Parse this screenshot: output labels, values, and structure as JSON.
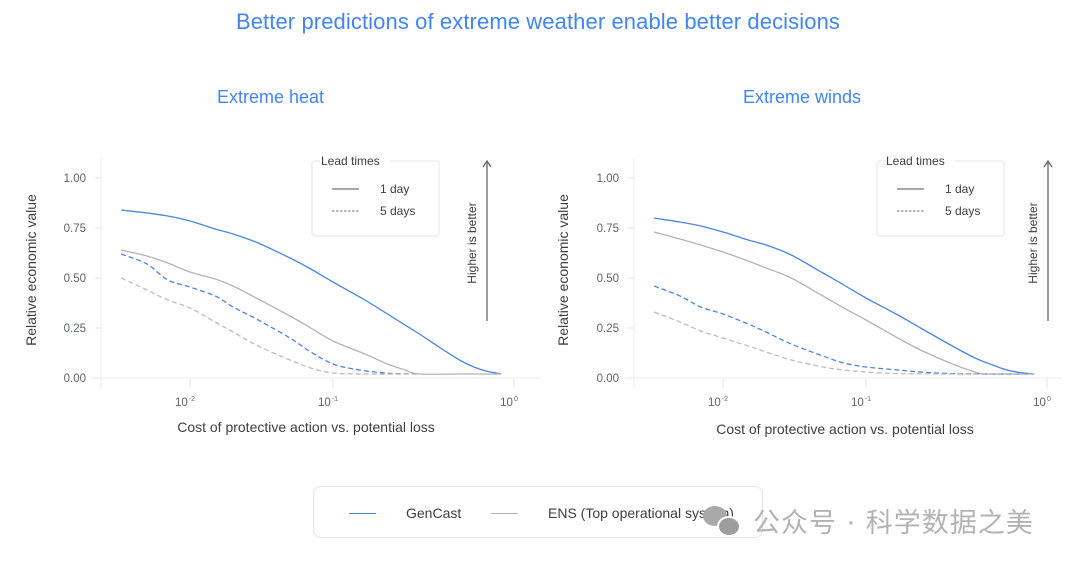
{
  "title": "Better predictions of extreme weather enable better decisions",
  "colors": {
    "title": "#4285f4",
    "gencast": "#4a86e0",
    "ens": "#b4b4b4",
    "gencast_5d": "#4a86e0",
    "ens_5d": "#bdbdbd"
  },
  "legend": {
    "items": [
      {
        "label": "GenCast",
        "series": "gencast"
      },
      {
        "label": "ENS (Top operational system)",
        "series": "ens"
      }
    ]
  },
  "lead_times": {
    "title": "Lead times",
    "items": [
      {
        "label": "1 day",
        "style": "solid"
      },
      {
        "label": "5 days",
        "style": "dashed"
      }
    ]
  },
  "annotation": "Higher is better",
  "watermark": {
    "icon": "wechat-icon",
    "text": "公众号 · 科学数据之美"
  },
  "chart_data": [
    {
      "type": "line",
      "title": "Extreme heat",
      "xlabel": "Cost of protective action vs. potential loss",
      "ylabel": "Relative economic value",
      "xscale": "log",
      "xticks": [
        {
          "base": "10",
          "exp": "-2",
          "value": 0.01
        },
        {
          "base": "10",
          "exp": "-1",
          "value": 0.1
        },
        {
          "base": "10",
          "exp": "0",
          "value": 1
        }
      ],
      "yticks": [
        "0.00",
        "0.25",
        "0.50",
        "0.75",
        "1.00"
      ],
      "ylim": [
        0,
        1
      ],
      "grid": false,
      "legend_position": "top-right",
      "series": [
        {
          "name": "GenCast",
          "lead": "1 day",
          "style": "solid",
          "color": "gencast",
          "x": [
            0.0033,
            0.005,
            0.007,
            0.01,
            0.015,
            0.02,
            0.03,
            0.05,
            0.07,
            0.1,
            0.15,
            0.2,
            0.3,
            0.4,
            0.5,
            0.6,
            0.7,
            0.85
          ],
          "y": [
            0.84,
            0.825,
            0.81,
            0.785,
            0.745,
            0.72,
            0.675,
            0.6,
            0.545,
            0.48,
            0.39,
            0.32,
            0.22,
            0.145,
            0.09,
            0.055,
            0.035,
            0.02
          ]
        },
        {
          "name": "ENS",
          "lead": "1 day",
          "style": "solid",
          "color": "ens",
          "x": [
            0.0033,
            0.005,
            0.007,
            0.01,
            0.015,
            0.02,
            0.03,
            0.05,
            0.07,
            0.1,
            0.15,
            0.2,
            0.25,
            0.3,
            0.5,
            0.85
          ],
          "y": [
            0.64,
            0.61,
            0.575,
            0.53,
            0.495,
            0.46,
            0.395,
            0.31,
            0.25,
            0.185,
            0.12,
            0.07,
            0.04,
            0.02,
            0.02,
            0.02
          ]
        },
        {
          "name": "GenCast",
          "lead": "5 days",
          "style": "dashed",
          "color": "gencast_5d",
          "x": [
            0.0033,
            0.005,
            0.007,
            0.01,
            0.015,
            0.02,
            0.03,
            0.05,
            0.07,
            0.1,
            0.13,
            0.17,
            0.22,
            0.3
          ],
          "y": [
            0.62,
            0.57,
            0.49,
            0.455,
            0.41,
            0.355,
            0.29,
            0.2,
            0.13,
            0.07,
            0.045,
            0.03,
            0.022,
            0.02
          ]
        },
        {
          "name": "ENS",
          "lead": "5 days",
          "style": "dashed",
          "color": "ens_5d",
          "x": [
            0.0033,
            0.005,
            0.007,
            0.01,
            0.015,
            0.02,
            0.03,
            0.05,
            0.07,
            0.1,
            0.15,
            0.3
          ],
          "y": [
            0.5,
            0.44,
            0.39,
            0.35,
            0.28,
            0.23,
            0.16,
            0.09,
            0.05,
            0.025,
            0.02,
            0.02
          ]
        }
      ]
    },
    {
      "type": "line",
      "title": "Extreme winds",
      "xlabel": "Cost of protective action vs. potential loss",
      "ylabel": "Relative economic value",
      "xscale": "log",
      "xticks": [
        {
          "base": "10",
          "exp": "-2",
          "value": 0.01
        },
        {
          "base": "10",
          "exp": "-1",
          "value": 0.1
        },
        {
          "base": "10",
          "exp": "0",
          "value": 1
        }
      ],
      "yticks": [
        "0.00",
        "0.25",
        "0.50",
        "0.75",
        "1.00"
      ],
      "ylim": [
        0,
        1
      ],
      "grid": false,
      "legend_position": "top-right",
      "series": [
        {
          "name": "GenCast",
          "lead": "1 day",
          "style": "solid",
          "color": "gencast",
          "x": [
            0.0033,
            0.005,
            0.007,
            0.01,
            0.015,
            0.02,
            0.03,
            0.05,
            0.07,
            0.1,
            0.15,
            0.2,
            0.3,
            0.4,
            0.5,
            0.6,
            0.7,
            0.85
          ],
          "y": [
            0.8,
            0.78,
            0.76,
            0.73,
            0.69,
            0.665,
            0.615,
            0.525,
            0.465,
            0.4,
            0.315,
            0.25,
            0.16,
            0.1,
            0.065,
            0.04,
            0.028,
            0.02
          ]
        },
        {
          "name": "ENS",
          "lead": "1 day",
          "style": "solid",
          "color": "ens",
          "x": [
            0.0033,
            0.005,
            0.007,
            0.01,
            0.015,
            0.02,
            0.03,
            0.05,
            0.07,
            0.1,
            0.15,
            0.2,
            0.3,
            0.4,
            0.45,
            0.6,
            0.85
          ],
          "y": [
            0.73,
            0.695,
            0.665,
            0.63,
            0.585,
            0.55,
            0.5,
            0.41,
            0.35,
            0.29,
            0.2,
            0.14,
            0.07,
            0.03,
            0.02,
            0.02,
            0.02
          ]
        },
        {
          "name": "GenCast",
          "lead": "5 days",
          "style": "dashed",
          "color": "gencast_5d",
          "x": [
            0.0033,
            0.005,
            0.007,
            0.01,
            0.015,
            0.02,
            0.03,
            0.05,
            0.07,
            0.1,
            0.15,
            0.2,
            0.3,
            0.5,
            0.85
          ],
          "y": [
            0.46,
            0.41,
            0.355,
            0.32,
            0.27,
            0.23,
            0.17,
            0.11,
            0.075,
            0.055,
            0.04,
            0.03,
            0.022,
            0.02,
            0.02
          ]
        },
        {
          "name": "ENS",
          "lead": "5 days",
          "style": "dashed",
          "color": "ens_5d",
          "x": [
            0.0033,
            0.005,
            0.007,
            0.01,
            0.015,
            0.02,
            0.03,
            0.05,
            0.07,
            0.1,
            0.15,
            0.3,
            0.5,
            0.85
          ],
          "y": [
            0.33,
            0.28,
            0.235,
            0.2,
            0.16,
            0.13,
            0.09,
            0.055,
            0.04,
            0.03,
            0.022,
            0.02,
            0.02,
            0.02
          ]
        }
      ]
    }
  ]
}
